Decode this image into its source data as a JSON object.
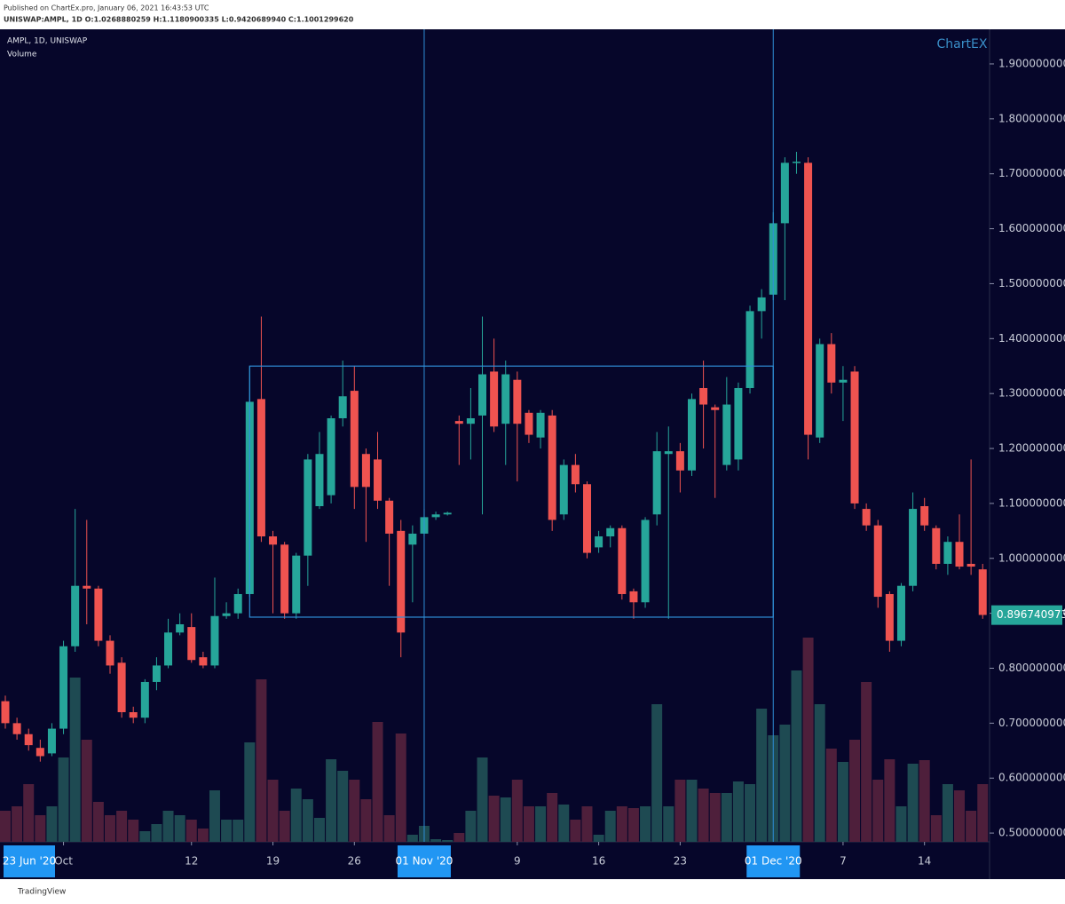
{
  "header": {
    "published": "Published on ChartEx.pro, January 06, 2021 16:43:53 UTC",
    "symbol_line": "UNISWAP:AMPL, 1D O:1.0268880259 H:1.1180900335 L:0.9420689940 C:1.1001299620"
  },
  "logo": "ChartEX",
  "footer": "TradingView",
  "chart_data": {
    "type": "candlestick",
    "series_label": "AMPL, 1D, UNISWAP",
    "volume_label": "Volume",
    "x": [
      "2020-09-26",
      "2020-09-27",
      "2020-09-28",
      "2020-09-29",
      "2020-09-30",
      "2020-10-01",
      "2020-10-02",
      "2020-10-03",
      "2020-10-04",
      "2020-10-05",
      "2020-10-06",
      "2020-10-07",
      "2020-10-08",
      "2020-10-09",
      "2020-10-10",
      "2020-10-11",
      "2020-10-12",
      "2020-10-13",
      "2020-10-14",
      "2020-10-15",
      "2020-10-16",
      "2020-10-17",
      "2020-10-18",
      "2020-10-19",
      "2020-10-20",
      "2020-10-21",
      "2020-10-22",
      "2020-10-23",
      "2020-10-24",
      "2020-10-25",
      "2020-10-26",
      "2020-10-27",
      "2020-10-28",
      "2020-10-29",
      "2020-10-30",
      "2020-10-31",
      "2020-11-01",
      "2020-11-02",
      "2020-11-03",
      "2020-11-04",
      "2020-11-05",
      "2020-11-06",
      "2020-11-07",
      "2020-11-08",
      "2020-11-09",
      "2020-11-10",
      "2020-11-11",
      "2020-11-12",
      "2020-11-13",
      "2020-11-14",
      "2020-11-15",
      "2020-11-16",
      "2020-11-17",
      "2020-11-18",
      "2020-11-19",
      "2020-11-20",
      "2020-11-21",
      "2020-11-22",
      "2020-11-23",
      "2020-11-24",
      "2020-11-25",
      "2020-11-26",
      "2020-11-27",
      "2020-11-28",
      "2020-11-29",
      "2020-11-30",
      "2020-12-01",
      "2020-12-02",
      "2020-12-03",
      "2020-12-04",
      "2020-12-05",
      "2020-12-06",
      "2020-12-07",
      "2020-12-08",
      "2020-12-09",
      "2020-12-10",
      "2020-12-11",
      "2020-12-12",
      "2020-12-13",
      "2020-12-14",
      "2020-12-15",
      "2020-12-16",
      "2020-12-17",
      "2020-12-18",
      "2020-12-19"
    ],
    "open": [
      0.74,
      0.7,
      0.68,
      0.655,
      0.645,
      0.69,
      0.84,
      0.95,
      0.945,
      0.85,
      0.81,
      0.72,
      0.71,
      0.775,
      0.805,
      0.865,
      0.875,
      0.82,
      0.805,
      0.895,
      0.9,
      0.935,
      1.29,
      1.04,
      1.025,
      0.9,
      1.005,
      1.095,
      1.115,
      1.255,
      1.305,
      1.19,
      1.18,
      1.105,
      1.05,
      1.025,
      1.045,
      1.075,
      1.08,
      1.25,
      1.245,
      1.26,
      1.34,
      1.245,
      1.325,
      1.265,
      1.22,
      1.26,
      1.08,
      1.17,
      1.135,
      1.02,
      1.04,
      1.055,
      0.94,
      0.92,
      1.08,
      1.19,
      1.195,
      1.16,
      1.31,
      1.275,
      1.17,
      1.18,
      1.31,
      1.45,
      1.48,
      1.61,
      1.72,
      1.72,
      1.22,
      1.39,
      1.32,
      1.34,
      1.09,
      1.06,
      0.935,
      0.85,
      0.95,
      1.095,
      1.055,
      0.99,
      1.03,
      0.99,
      0.98
    ],
    "high": [
      0.75,
      0.71,
      0.69,
      0.67,
      0.7,
      0.85,
      1.09,
      1.07,
      0.95,
      0.86,
      0.82,
      0.73,
      0.78,
      0.82,
      0.89,
      0.9,
      0.9,
      0.83,
      0.965,
      0.92,
      0.945,
      1.35,
      1.44,
      1.05,
      1.03,
      1.01,
      1.19,
      1.23,
      1.26,
      1.36,
      1.35,
      1.2,
      1.23,
      1.11,
      1.07,
      1.06,
      1.09,
      1.085,
      1.085,
      1.26,
      1.31,
      1.44,
      1.4,
      1.36,
      1.34,
      1.27,
      1.27,
      1.27,
      1.18,
      1.19,
      1.14,
      1.05,
      1.06,
      1.06,
      0.945,
      1.075,
      1.23,
      1.24,
      1.21,
      1.3,
      1.36,
      1.28,
      1.33,
      1.32,
      1.46,
      1.49,
      1.63,
      1.73,
      1.74,
      1.73,
      1.4,
      1.41,
      1.35,
      1.35,
      1.1,
      1.07,
      0.94,
      0.955,
      1.12,
      1.11,
      1.06,
      1.04,
      1.08,
      1.18,
      0.99
    ],
    "low": [
      0.69,
      0.67,
      0.65,
      0.63,
      0.64,
      0.68,
      0.83,
      0.88,
      0.84,
      0.79,
      0.71,
      0.7,
      0.7,
      0.76,
      0.8,
      0.86,
      0.81,
      0.8,
      0.8,
      0.89,
      0.89,
      0.93,
      1.03,
      0.9,
      0.89,
      0.89,
      0.95,
      1.09,
      1.1,
      1.24,
      1.09,
      1.03,
      1.09,
      0.95,
      0.82,
      0.92,
      1.04,
      1.07,
      1.078,
      1.17,
      1.18,
      1.08,
      1.23,
      1.17,
      1.14,
      1.21,
      1.2,
      1.05,
      1.07,
      1.12,
      1.0,
      1.01,
      1.02,
      0.925,
      0.89,
      0.91,
      1.06,
      0.89,
      1.12,
      1.15,
      1.2,
      1.11,
      1.16,
      1.16,
      1.3,
      1.4,
      1.47,
      1.47,
      1.7,
      1.18,
      1.21,
      1.3,
      1.25,
      1.09,
      1.05,
      0.91,
      0.83,
      0.84,
      0.94,
      1.05,
      0.98,
      0.97,
      0.98,
      0.97,
      0.89
    ],
    "close": [
      0.7,
      0.68,
      0.66,
      0.64,
      0.69,
      0.84,
      0.95,
      0.945,
      0.85,
      0.805,
      0.72,
      0.71,
      0.775,
      0.805,
      0.865,
      0.88,
      0.815,
      0.805,
      0.895,
      0.9,
      0.935,
      1.285,
      1.04,
      1.025,
      0.9,
      1.005,
      1.18,
      1.19,
      1.255,
      1.295,
      1.13,
      1.13,
      1.105,
      1.045,
      0.865,
      1.045,
      1.075,
      1.08,
      1.083,
      1.245,
      1.255,
      1.335,
      1.24,
      1.335,
      1.245,
      1.225,
      1.265,
      1.07,
      1.17,
      1.135,
      1.01,
      1.04,
      1.055,
      0.935,
      0.92,
      1.07,
      1.195,
      1.195,
      1.16,
      1.29,
      1.28,
      1.27,
      1.28,
      1.31,
      1.45,
      1.475,
      1.61,
      1.72,
      1.722,
      1.225,
      1.39,
      1.32,
      1.325,
      1.1,
      1.06,
      0.93,
      0.85,
      0.95,
      1.09,
      1.06,
      0.99,
      1.03,
      0.985,
      0.985,
      0.897
    ],
    "volume": [
      35,
      40,
      65,
      30,
      40,
      95,
      185,
      115,
      45,
      30,
      35,
      25,
      12,
      20,
      35,
      30,
      25,
      15,
      58,
      25,
      25,
      112,
      183,
      70,
      35,
      60,
      48,
      27,
      93,
      80,
      70,
      48,
      135,
      30,
      122,
      8,
      18,
      3,
      2,
      10,
      35,
      95,
      52,
      50,
      70,
      40,
      40,
      55,
      42,
      25,
      40,
      8,
      35,
      40,
      38,
      40,
      155,
      40,
      70,
      70,
      60,
      55,
      55,
      68,
      65,
      150,
      120,
      132,
      193,
      230,
      155,
      105,
      90,
      115,
      180,
      70,
      93,
      40,
      88,
      92,
      30,
      65,
      58,
      35,
      65
    ],
    "up_color": "#26a69a",
    "down_color": "#ef5350",
    "volume_up_color": "#1e4a52",
    "volume_down_color": "#4e1f3b",
    "background": "#06062a",
    "ylim": [
      0.484,
      1.963
    ],
    "yticks": [
      {
        "value": 0.5,
        "label": "0.5000000000"
      },
      {
        "value": 0.6,
        "label": "0.6000000000"
      },
      {
        "value": 0.7,
        "label": "0.7000000000"
      },
      {
        "value": 0.8,
        "label": "0.8000000000"
      },
      {
        "value": 0.9,
        "label": "0.9000000000"
      },
      {
        "value": 1.0,
        "label": "1.0000000000"
      },
      {
        "value": 1.1,
        "label": "1.1000000000"
      },
      {
        "value": 1.2,
        "label": "1.2000000000"
      },
      {
        "value": 1.3,
        "label": "1.3000000000"
      },
      {
        "value": 1.4,
        "label": "1.4000000000"
      },
      {
        "value": 1.5,
        "label": "1.5000000000"
      },
      {
        "value": 1.6,
        "label": "1.6000000000"
      },
      {
        "value": 1.7,
        "label": "1.7000000000"
      },
      {
        "value": 1.8,
        "label": "1.8000000000"
      },
      {
        "value": 1.9,
        "label": "1.9000000000"
      }
    ],
    "xticks": [
      {
        "value": "2020-10-01",
        "label": "Oct"
      },
      {
        "value": "2020-10-12",
        "label": "12"
      },
      {
        "value": "2020-10-19",
        "label": "19"
      },
      {
        "value": "2020-10-26",
        "label": "26"
      },
      {
        "value": "2020-11-01",
        "label": "01 Nov '20"
      },
      {
        "value": "2020-11-09",
        "label": "9"
      },
      {
        "value": "2020-11-16",
        "label": "16"
      },
      {
        "value": "2020-11-23",
        "label": "23"
      },
      {
        "value": "2020-12-01",
        "label": "01 Dec '20"
      },
      {
        "value": "2020-12-07",
        "label": "7"
      },
      {
        "value": "2020-12-14",
        "label": "14"
      }
    ],
    "x_start_label": "23 Jun '20",
    "vlines": [
      "2020-11-01",
      "2020-12-01"
    ],
    "box": {
      "x": [
        "2020-10-17",
        "2020-12-01"
      ],
      "y": [
        0.893,
        1.35
      ]
    },
    "last_price": {
      "value": 0.896740973,
      "label": "0.8967409730"
    }
  }
}
